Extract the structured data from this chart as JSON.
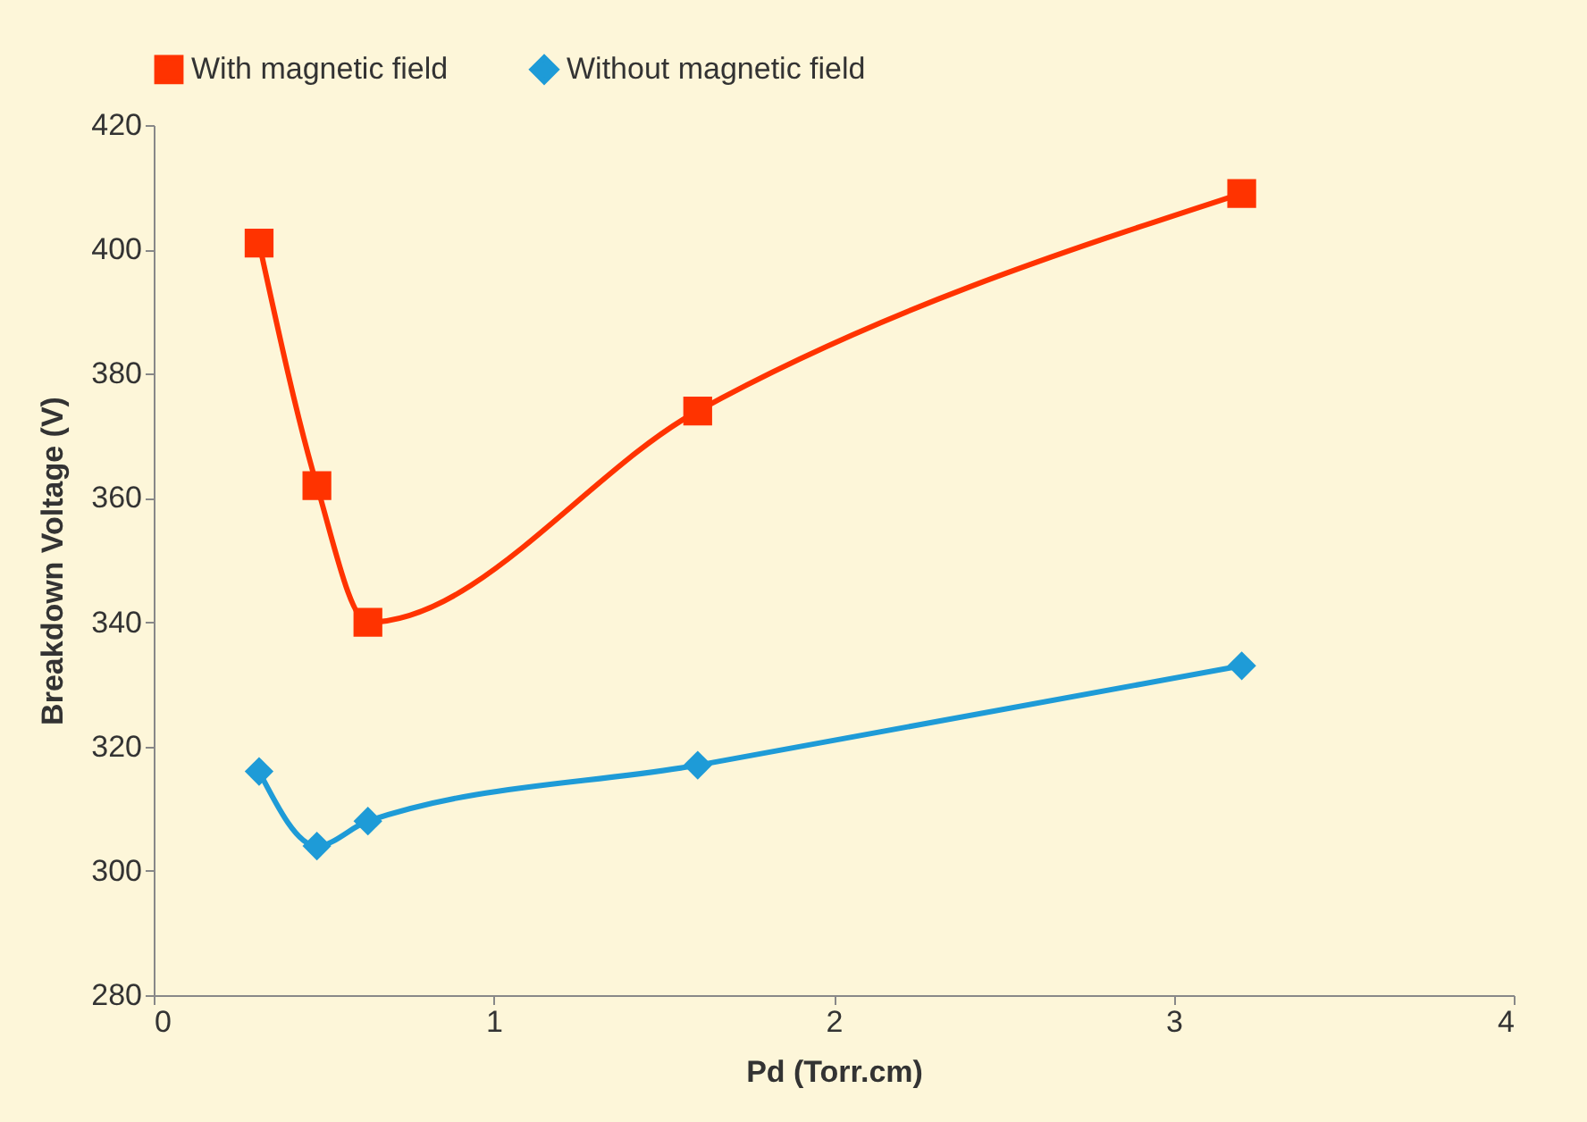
{
  "chart_data": {
    "type": "line",
    "xlabel": "Pd (Torr.cm)",
    "ylabel": "Breakdown Voltage (V)",
    "xlim": [
      0,
      4
    ],
    "xticks": [
      0,
      1,
      2,
      3,
      4
    ],
    "ylim": [
      280,
      420
    ],
    "yticks": [
      280,
      300,
      320,
      340,
      360,
      380,
      400,
      420
    ],
    "grid": false,
    "legend": "top",
    "series": [
      {
        "name": "With magnetic field",
        "color": "#ff3300",
        "marker": "square",
        "x": [
          0.31,
          0.48,
          0.63,
          1.6,
          3.2
        ],
        "values": [
          401,
          362,
          340,
          374,
          409
        ]
      },
      {
        "name": "Without magnetic field",
        "color": "#1e9bd7",
        "marker": "diamond",
        "x": [
          0.31,
          0.48,
          0.63,
          1.6,
          3.2
        ],
        "values": [
          316,
          304,
          308,
          317,
          333
        ]
      }
    ]
  }
}
